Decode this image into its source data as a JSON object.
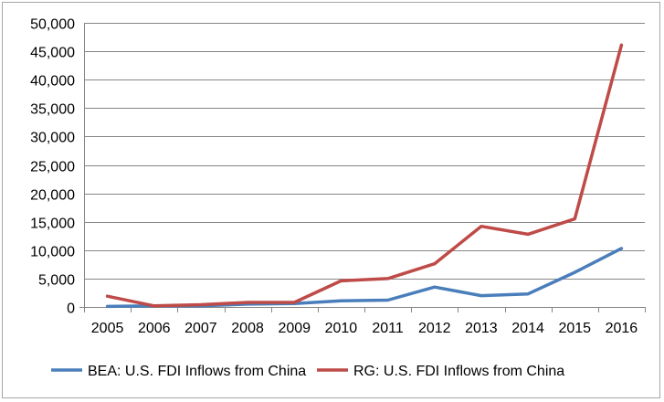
{
  "chart_data": {
    "type": "line",
    "x": [
      "2005",
      "2006",
      "2007",
      "2008",
      "2009",
      "2010",
      "2011",
      "2012",
      "2013",
      "2014",
      "2015",
      "2016"
    ],
    "ylim": [
      0,
      50000
    ],
    "y_ticks": [
      "0",
      "5,000",
      "10,000",
      "15,000",
      "20,000",
      "25,000",
      "30,000",
      "35,000",
      "40,000",
      "45,000",
      "50,000"
    ],
    "grid": "horizontal",
    "legend_position": "bottom",
    "series": [
      {
        "name": "BEA: U.S. FDI Inflows from China",
        "color": "#4a7ebb",
        "values": [
          100,
          200,
          200,
          500,
          600,
          1100,
          1200,
          3500,
          2000,
          2300,
          6100,
          10300
        ]
      },
      {
        "name": "RG: U.S. FDI Inflows from China",
        "color": "#be4b48",
        "values": [
          1900,
          200,
          400,
          800,
          800,
          4600,
          5000,
          7600,
          14200,
          12800,
          15500,
          46100
        ]
      }
    ]
  }
}
